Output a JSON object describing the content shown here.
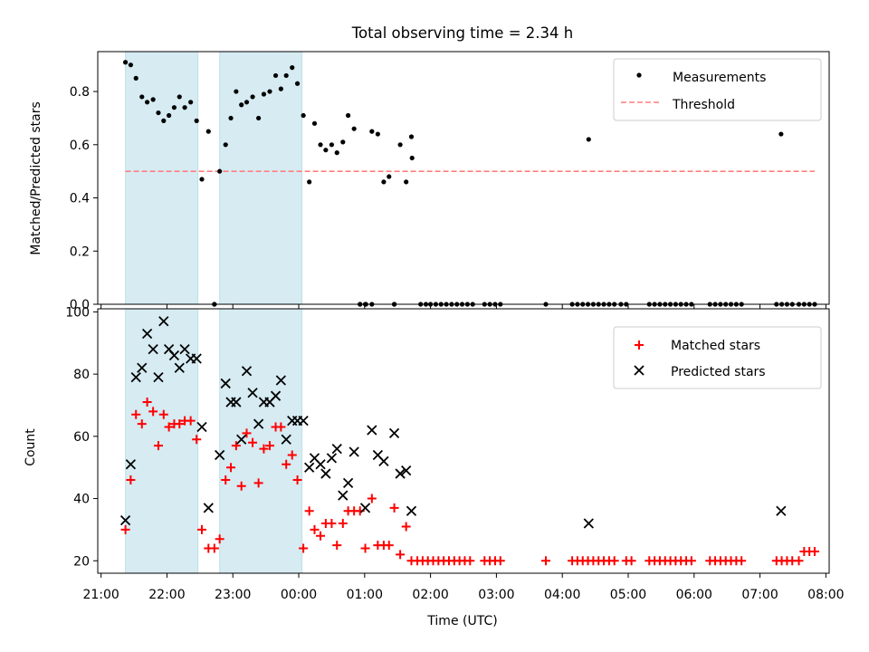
{
  "figure_title": "Total observing time = 2.34 h",
  "colors": {
    "shade": "#add8e6",
    "threshold": "#ff7f7f",
    "measurement": "#000000",
    "matched": "#ff0000",
    "predicted": "#000000"
  },
  "chart_data": [
    {
      "type": "scatter",
      "title": "Total observing time = 2.34 h",
      "xlabel": "",
      "ylabel": "Matched/Predicted stars",
      "xlim": [
        -0.05,
        11.05
      ],
      "ylim": [
        0,
        0.95
      ],
      "yticks": [
        0.0,
        0.2,
        0.4,
        0.6,
        0.8
      ],
      "ytick_labels": [
        "0.0",
        "0.2",
        "0.4",
        "0.6",
        "0.8"
      ],
      "x_units": "hours after 21:00 UTC",
      "shaded_intervals": [
        [
          0.37,
          1.47
        ],
        [
          1.8,
          3.05
        ]
      ],
      "legend": {
        "position": "upper right",
        "entries": [
          "Measurements",
          "Threshold"
        ]
      },
      "series": [
        {
          "name": "Measurements",
          "marker": "dot",
          "x": [
            0.37,
            0.45,
            0.53,
            0.62,
            0.7,
            0.79,
            0.87,
            0.95,
            1.03,
            1.11,
            1.19,
            1.27,
            1.36,
            1.45,
            1.53,
            1.63,
            1.72,
            1.8,
            1.89,
            1.97,
            2.05,
            2.13,
            2.21,
            2.3,
            2.39,
            2.47,
            2.56,
            2.65,
            2.73,
            2.81,
            2.9,
            2.98,
            3.07,
            3.16,
            3.24,
            3.33,
            3.41,
            3.5,
            3.58,
            3.67,
            3.75,
            3.84,
            3.93,
            4.01,
            4.11,
            4.2,
            4.29,
            4.37,
            4.45,
            4.54,
            4.63,
            4.71,
            1.72,
            3.93,
            4.02,
            4.11,
            4.45,
            4.85,
            4.93,
            5.0,
            5.08,
            5.16,
            5.24,
            5.32,
            5.4,
            5.48,
            5.56,
            5.64,
            5.82,
            5.9,
            5.98,
            6.06,
            6.75,
            7.15,
            7.23,
            7.31,
            7.39,
            7.47,
            7.55,
            7.63,
            7.71,
            7.79,
            7.89,
            7.97,
            8.32,
            8.4,
            8.48,
            8.56,
            8.64,
            8.72,
            8.8,
            8.88,
            8.96,
            9.24,
            9.32,
            9.4,
            9.48,
            9.56,
            9.64,
            9.72,
            10.25,
            10.33,
            10.41,
            10.49,
            10.59,
            10.67,
            10.75,
            10.83
          ],
          "y": [
            0.91,
            0.9,
            0.85,
            0.78,
            0.76,
            0.77,
            0.72,
            0.69,
            0.71,
            0.74,
            0.78,
            0.74,
            0.76,
            0.69,
            0.47,
            0.65,
            0.0,
            0.5,
            0.6,
            0.7,
            0.8,
            0.75,
            0.76,
            0.78,
            0.7,
            0.79,
            0.8,
            0.86,
            0.81,
            0.86,
            0.89,
            0.83,
            0.71,
            0.46,
            0.68,
            0.6,
            0.58,
            0.6,
            0.57,
            0.61,
            0.71,
            0.66,
            0.0,
            0.0,
            0.65,
            0.64,
            0.46,
            0.48,
            0.0,
            0.6,
            0.46,
            0.63,
            0.0,
            0.0,
            0.0,
            0.0,
            0.0,
            0.0,
            0.0,
            0.0,
            0.0,
            0.0,
            0.0,
            0.0,
            0.0,
            0.0,
            0.0,
            0.0,
            0.0,
            0.0,
            0.0,
            0.0,
            0.0,
            0.0,
            0.0,
            0.0,
            0.0,
            0.0,
            0.0,
            0.0,
            0.0,
            0.0,
            0.0,
            0.0,
            0.0,
            0.0,
            0.0,
            0.0,
            0.0,
            0.0,
            0.0,
            0.0,
            0.0,
            0.0,
            0.0,
            0.0,
            0.0,
            0.0,
            0.0,
            0.0,
            0.0,
            0.0,
            0.0,
            0.0,
            0.0,
            0.0,
            0.0,
            0.0
          ]
        },
        {
          "name": "Threshold",
          "marker": "dashed-line",
          "x": [
            0.37,
            10.83
          ],
          "y": [
            0.5,
            0.5
          ]
        }
      ],
      "extra_points": {
        "x": [
          4.72,
          7.4,
          10.32
        ],
        "y": [
          0.55,
          0.62,
          0.64
        ]
      }
    },
    {
      "type": "scatter",
      "title": "",
      "xlabel": "Time (UTC)",
      "ylabel": "Count",
      "xlim": [
        -0.05,
        11.05
      ],
      "ylim": [
        16,
        101
      ],
      "yticks": [
        20,
        40,
        60,
        80,
        100
      ],
      "ytick_labels": [
        "20",
        "40",
        "60",
        "80",
        "100"
      ],
      "xticks": [
        0,
        1,
        2,
        3,
        4,
        5,
        6,
        7,
        8,
        9,
        10,
        11
      ],
      "xtick_labels": [
        "21:00",
        "22:00",
        "23:00",
        "00:00",
        "01:00",
        "02:00",
        "03:00",
        "04:00",
        "05:00",
        "06:00",
        "07:00",
        "08:00"
      ],
      "shaded_intervals": [
        [
          0.37,
          1.47
        ],
        [
          1.8,
          3.05
        ]
      ],
      "legend": {
        "position": "upper right",
        "entries": [
          "Matched stars",
          "Predicted stars"
        ]
      },
      "series": [
        {
          "name": "Matched stars",
          "marker": "plus",
          "x": [
            0.37,
            0.45,
            0.53,
            0.62,
            0.7,
            0.79,
            0.87,
            0.95,
            1.03,
            1.11,
            1.19,
            1.27,
            1.36,
            1.45,
            1.53,
            1.63,
            1.72,
            1.8,
            1.89,
            1.97,
            2.05,
            2.13,
            2.21,
            2.3,
            2.39,
            2.47,
            2.56,
            2.65,
            2.73,
            2.81,
            2.9,
            2.98,
            3.07,
            3.16,
            3.24,
            3.33,
            3.41,
            3.5,
            3.58,
            3.67,
            3.75,
            3.84,
            3.93,
            4.01,
            4.11,
            4.2,
            4.29,
            4.37,
            4.45,
            4.54,
            4.63,
            4.71,
            4.8,
            4.88,
            4.96,
            5.04,
            5.12,
            5.2,
            5.28,
            5.36,
            5.44,
            5.52,
            5.6,
            5.82,
            5.9,
            5.98,
            6.06,
            6.75,
            7.15,
            7.23,
            7.31,
            7.39,
            7.47,
            7.55,
            7.63,
            7.71,
            7.79,
            7.97,
            8.05,
            8.32,
            8.4,
            8.48,
            8.56,
            8.64,
            8.72,
            8.8,
            8.88,
            8.96,
            9.24,
            9.32,
            9.4,
            9.48,
            9.56,
            9.64,
            9.72,
            10.25,
            10.33,
            10.41,
            10.49,
            10.59,
            10.67,
            10.75,
            10.83
          ],
          "y": [
            30,
            46,
            67,
            64,
            71,
            68,
            57,
            67,
            63,
            64,
            64,
            65,
            65,
            59,
            30,
            24,
            24,
            27,
            46,
            50,
            57,
            44,
            61,
            58,
            45,
            56,
            57,
            63,
            63,
            51,
            54,
            46,
            24,
            36,
            30,
            28,
            32,
            32,
            25,
            32,
            36,
            36,
            36,
            24,
            40,
            25,
            25,
            25,
            37,
            22,
            31,
            20,
            20,
            20,
            20,
            20,
            20,
            20,
            20,
            20,
            20,
            20,
            20,
            20,
            20,
            20,
            20,
            20,
            20,
            20,
            20,
            20,
            20,
            20,
            20,
            20,
            20,
            20,
            20,
            20,
            20,
            20,
            20,
            20,
            20,
            20,
            20,
            20,
            20,
            20,
            20,
            20,
            20,
            20,
            20,
            20,
            20,
            20,
            20,
            20,
            23,
            23,
            23
          ]
        },
        {
          "name": "Predicted stars",
          "marker": "x",
          "x": [
            0.37,
            0.45,
            0.53,
            0.62,
            0.7,
            0.79,
            0.87,
            0.95,
            1.03,
            1.11,
            1.19,
            1.27,
            1.36,
            1.45,
            1.53,
            1.63,
            1.8,
            1.89,
            1.97,
            2.05,
            2.13,
            2.21,
            2.3,
            2.39,
            2.47,
            2.56,
            2.65,
            2.73,
            2.81,
            2.9,
            2.98,
            3.07,
            3.16,
            3.24,
            3.33,
            3.41,
            3.5,
            3.58,
            3.67,
            3.75,
            3.84,
            4.01,
            4.11,
            4.2,
            4.29,
            4.45,
            4.54,
            4.63,
            4.71,
            7.4,
            10.32
          ],
          "y": [
            33,
            51,
            79,
            82,
            93,
            88,
            79,
            97,
            88,
            86,
            82,
            88,
            85,
            85,
            63,
            37,
            54,
            77,
            71,
            71,
            59,
            81,
            74,
            64,
            71,
            71,
            73,
            78,
            59,
            65,
            65,
            65,
            50,
            53,
            51,
            48,
            53,
            56,
            41,
            45,
            55,
            37,
            62,
            54,
            52,
            61,
            48,
            49,
            36,
            32,
            36
          ]
        }
      ]
    }
  ]
}
